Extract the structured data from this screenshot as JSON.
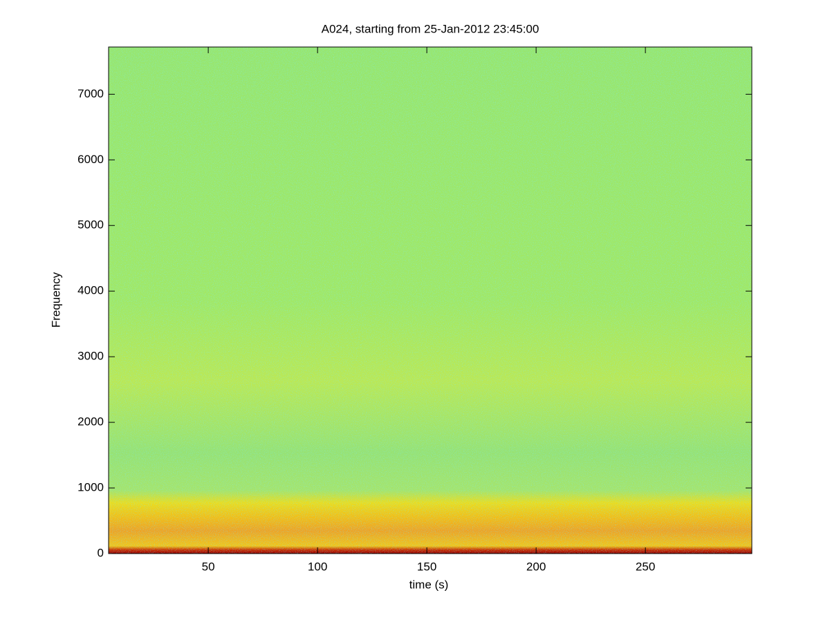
{
  "chart_data": {
    "type": "spectrogram",
    "title": "A024, starting from 25-Jan-2012 23:45:00",
    "x_label": "time (s)",
    "y_label": "Frequency",
    "xlim": [
      4.4,
      298.7
    ],
    "ylim": [
      0,
      7720
    ],
    "xticks": [
      50,
      100,
      150,
      200,
      250
    ],
    "yticks": [
      0,
      1000,
      2000,
      3000,
      4000,
      5000,
      6000,
      7000
    ]
  }
}
